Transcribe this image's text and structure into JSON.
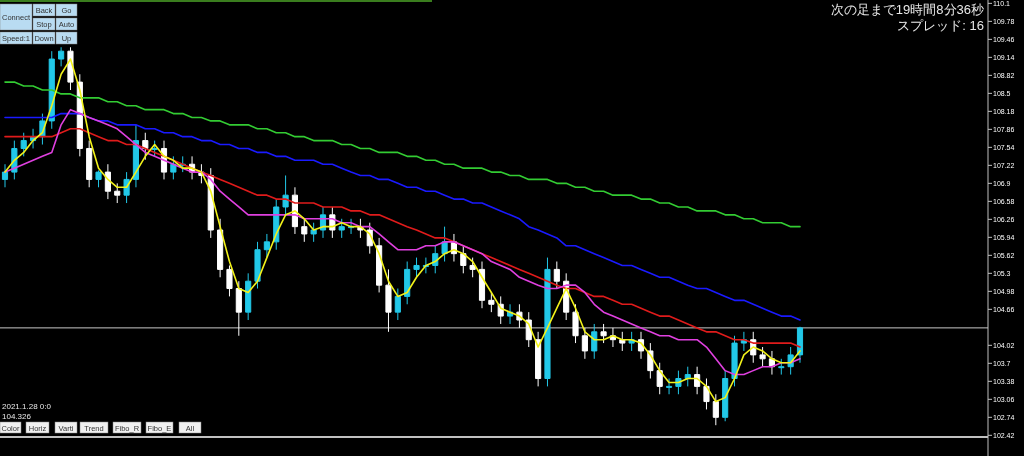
{
  "chart_data": {
    "type": "candlestick",
    "categories": [
      null,
      null,
      null,
      null,
      null,
      null,
      null,
      null,
      null,
      null,
      null,
      null,
      null,
      null,
      null,
      null,
      null,
      null,
      null,
      null,
      null,
      null,
      null,
      null,
      null,
      null,
      null,
      null,
      null,
      null,
      null,
      null,
      null,
      null,
      null,
      null,
      null,
      null,
      null,
      null,
      null,
      null,
      null,
      null,
      null,
      null,
      null,
      null,
      null,
      null,
      null,
      null,
      null,
      null,
      null,
      null,
      null,
      null,
      null,
      null,
      null,
      null,
      null,
      null,
      null,
      null,
      null,
      null,
      null,
      null,
      null,
      null,
      null,
      null,
      null,
      null,
      null,
      null,
      null,
      null,
      null,
      null,
      null,
      null,
      null,
      null
    ],
    "ylim": [
      102.39,
      110.16
    ],
    "yticks": [
      102.42,
      102.74,
      103.06,
      103.38,
      103.7,
      104.02,
      104.66,
      104.98,
      105.3,
      105.62,
      105.94,
      106.26,
      106.58,
      106.9,
      107.22,
      107.54,
      107.86,
      108.18,
      108.5,
      108.82,
      109.14,
      109.46,
      109.78,
      110.1
    ],
    "ohlc": [
      [
        106.97,
        107.24,
        106.83,
        107.1
      ],
      [
        107.1,
        107.66,
        106.97,
        107.52
      ],
      [
        107.52,
        107.8,
        107.38,
        107.66
      ],
      [
        107.66,
        107.87,
        107.52,
        107.73
      ],
      [
        107.73,
        108.14,
        107.59,
        108.01
      ],
      [
        108.01,
        109.25,
        107.87,
        109.11
      ],
      [
        109.11,
        109.32,
        108.98,
        109.25
      ],
      [
        109.25,
        109.32,
        108.56,
        108.7
      ],
      [
        108.7,
        108.84,
        107.38,
        107.52
      ],
      [
        107.52,
        107.66,
        106.83,
        106.97
      ],
      [
        106.97,
        107.13,
        106.83,
        107.1
      ],
      [
        107.1,
        107.24,
        106.62,
        106.76
      ],
      [
        106.76,
        106.9,
        106.55,
        106.69
      ],
      [
        106.69,
        107.1,
        106.55,
        106.97
      ],
      [
        106.97,
        107.94,
        106.83,
        107.66
      ],
      [
        107.66,
        107.8,
        107.32,
        107.52
      ],
      [
        107.52,
        107.66,
        107.38,
        107.52
      ],
      [
        107.52,
        107.66,
        106.97,
        107.1
      ],
      [
        107.1,
        107.38,
        106.97,
        107.24
      ],
      [
        107.24,
        107.38,
        107.1,
        107.24
      ],
      [
        107.24,
        107.38,
        106.97,
        107.1
      ],
      [
        107.1,
        107.24,
        106.9,
        107.04
      ],
      [
        107.04,
        107.17,
        105.93,
        106.07
      ],
      [
        106.07,
        106.27,
        105.23,
        105.37
      ],
      [
        105.37,
        105.44,
        104.89,
        105.03
      ],
      [
        105.03,
        105.16,
        104.19,
        104.61
      ],
      [
        104.61,
        105.3,
        104.47,
        105.16
      ],
      [
        105.16,
        105.86,
        105.03,
        105.72
      ],
      [
        105.72,
        106,
        105.58,
        105.86
      ],
      [
        105.86,
        106.62,
        105.72,
        106.48
      ],
      [
        106.48,
        107.04,
        106.34,
        106.69
      ],
      [
        106.69,
        106.83,
        106,
        106.13
      ],
      [
        106.13,
        106.27,
        105.86,
        106
      ],
      [
        106,
        106.2,
        105.86,
        106.07
      ],
      [
        106.07,
        106.48,
        105.93,
        106.34
      ],
      [
        106.34,
        106.48,
        105.93,
        106.07
      ],
      [
        106.07,
        106.27,
        105.93,
        106.13
      ],
      [
        106.13,
        106.27,
        106,
        106.13
      ],
      [
        106.13,
        106.27,
        105.93,
        106.07
      ],
      [
        106.07,
        106.2,
        105.65,
        105.79
      ],
      [
        105.79,
        105.93,
        104.96,
        105.09
      ],
      [
        105.09,
        105.37,
        104.26,
        104.61
      ],
      [
        104.61,
        105.03,
        104.47,
        104.89
      ],
      [
        104.89,
        105.51,
        104.75,
        105.37
      ],
      [
        105.37,
        105.58,
        105.23,
        105.44
      ],
      [
        105.44,
        105.58,
        105.3,
        105.44
      ],
      [
        105.44,
        105.79,
        105.3,
        105.65
      ],
      [
        105.65,
        106.13,
        105.51,
        105.86
      ],
      [
        105.86,
        106,
        105.51,
        105.65
      ],
      [
        105.65,
        105.79,
        105.3,
        105.44
      ],
      [
        105.44,
        105.58,
        105.23,
        105.37
      ],
      [
        105.37,
        105.51,
        104.68,
        104.82
      ],
      [
        104.82,
        104.96,
        104.61,
        104.75
      ],
      [
        104.75,
        104.89,
        104.4,
        104.54
      ],
      [
        104.54,
        104.75,
        104.4,
        104.61
      ],
      [
        104.61,
        104.75,
        104.33,
        104.47
      ],
      [
        104.47,
        104.61,
        103.99,
        104.12
      ],
      [
        104.12,
        104.26,
        103.29,
        103.43
      ],
      [
        103.43,
        105.58,
        103.29,
        105.37
      ],
      [
        105.37,
        105.51,
        105.03,
        105.16
      ],
      [
        105.16,
        105.3,
        104.47,
        104.61
      ],
      [
        104.61,
        104.75,
        104.06,
        104.19
      ],
      [
        104.19,
        104.33,
        103.78,
        103.92
      ],
      [
        103.92,
        104.4,
        103.78,
        104.26
      ],
      [
        104.26,
        104.4,
        104.06,
        104.19
      ],
      [
        104.19,
        104.33,
        103.99,
        104.12
      ],
      [
        104.12,
        104.26,
        103.92,
        104.06
      ],
      [
        104.06,
        104.26,
        103.92,
        104.12
      ],
      [
        104.12,
        104.26,
        103.78,
        103.92
      ],
      [
        103.92,
        104.06,
        103.43,
        103.57
      ],
      [
        103.57,
        103.71,
        103.15,
        103.29
      ],
      [
        103.29,
        103.43,
        103.15,
        103.29
      ],
      [
        103.29,
        103.57,
        103.15,
        103.43
      ],
      [
        103.43,
        103.64,
        103.29,
        103.5
      ],
      [
        103.5,
        103.64,
        103.15,
        103.29
      ],
      [
        103.29,
        103.43,
        102.88,
        103.02
      ],
      [
        103.02,
        103.15,
        102.6,
        102.74
      ],
      [
        102.74,
        103.57,
        102.67,
        103.43
      ],
      [
        103.43,
        104.19,
        103.29,
        104.06
      ],
      [
        104.06,
        104.26,
        103.92,
        104.12
      ],
      [
        104.12,
        104.26,
        103.71,
        103.85
      ],
      [
        103.85,
        103.99,
        103.64,
        103.78
      ],
      [
        103.78,
        103.92,
        103.5,
        103.64
      ],
      [
        103.64,
        103.78,
        103.5,
        103.64
      ],
      [
        103.64,
        103.99,
        103.5,
        103.85
      ],
      [
        103.85,
        104.35,
        103.71,
        104.33
      ]
    ],
    "series": [
      {
        "type": "line",
        "color": "#33cc33",
        "values": [
          108.7,
          108.7,
          108.63,
          108.63,
          108.56,
          108.56,
          108.49,
          108.49,
          108.42,
          108.42,
          108.42,
          108.35,
          108.35,
          108.28,
          108.28,
          108.21,
          108.21,
          108.21,
          108.14,
          108.14,
          108.07,
          108.07,
          108.01,
          108.01,
          107.94,
          107.94,
          107.94,
          107.87,
          107.87,
          107.8,
          107.8,
          107.73,
          107.73,
          107.66,
          107.66,
          107.66,
          107.59,
          107.59,
          107.52,
          107.52,
          107.45,
          107.45,
          107.45,
          107.38,
          107.38,
          107.31,
          107.31,
          107.24,
          107.24,
          107.17,
          107.17,
          107.17,
          107.1,
          107.1,
          107.04,
          107.04,
          106.97,
          106.97,
          106.97,
          106.9,
          106.9,
          106.83,
          106.83,
          106.76,
          106.76,
          106.69,
          106.69,
          106.69,
          106.62,
          106.62,
          106.55,
          106.55,
          106.48,
          106.48,
          106.41,
          106.41,
          106.41,
          106.34,
          106.34,
          106.27,
          106.27,
          106.2,
          106.2,
          106.2,
          106.13,
          106.13
        ]
      },
      {
        "type": "line",
        "color": "#1a1aff",
        "values": [
          108.07,
          108.07,
          108.07,
          108.07,
          108.07,
          108.07,
          108.14,
          108.14,
          108.14,
          108.07,
          108.01,
          108.01,
          107.94,
          107.94,
          107.94,
          107.87,
          107.87,
          107.8,
          107.8,
          107.73,
          107.73,
          107.66,
          107.66,
          107.59,
          107.59,
          107.52,
          107.52,
          107.45,
          107.45,
          107.38,
          107.38,
          107.31,
          107.31,
          107.31,
          107.24,
          107.24,
          107.17,
          107.1,
          107.04,
          107.04,
          106.97,
          106.97,
          106.9,
          106.83,
          106.83,
          106.76,
          106.76,
          106.69,
          106.62,
          106.62,
          106.55,
          106.55,
          106.48,
          106.41,
          106.34,
          106.27,
          106.13,
          106.07,
          106,
          105.93,
          105.79,
          105.79,
          105.72,
          105.65,
          105.58,
          105.51,
          105.44,
          105.44,
          105.37,
          105.3,
          105.23,
          105.23,
          105.16,
          105.09,
          105.03,
          105.03,
          104.96,
          104.89,
          104.82,
          104.82,
          104.75,
          104.68,
          104.61,
          104.54,
          104.54,
          104.47
        ]
      },
      {
        "type": "line",
        "color": "#e01b1b",
        "values": [
          107.73,
          107.73,
          107.73,
          107.73,
          107.73,
          107.73,
          107.8,
          107.87,
          107.87,
          107.8,
          107.73,
          107.66,
          107.66,
          107.59,
          107.59,
          107.52,
          107.45,
          107.38,
          107.31,
          107.24,
          107.17,
          107.1,
          107.04,
          106.97,
          106.9,
          106.83,
          106.76,
          106.69,
          106.69,
          106.62,
          106.62,
          106.55,
          106.55,
          106.55,
          106.48,
          106.48,
          106.48,
          106.41,
          106.41,
          106.34,
          106.34,
          106.27,
          106.2,
          106.13,
          106.07,
          106,
          105.93,
          105.93,
          105.86,
          105.79,
          105.72,
          105.65,
          105.58,
          105.51,
          105.44,
          105.37,
          105.3,
          105.23,
          105.16,
          105.09,
          105.03,
          105.03,
          104.96,
          104.89,
          104.89,
          104.82,
          104.75,
          104.75,
          104.68,
          104.61,
          104.54,
          104.54,
          104.47,
          104.4,
          104.33,
          104.26,
          104.26,
          104.19,
          104.12,
          104.12,
          104.06,
          104.06,
          104.06,
          104.06,
          104.06,
          103.99
        ]
      },
      {
        "type": "line",
        "color": "#e040e0",
        "values": [
          107.1,
          107.17,
          107.24,
          107.31,
          107.38,
          107.45,
          107.94,
          108.21,
          108.14,
          108.07,
          108.01,
          107.94,
          107.87,
          107.73,
          107.59,
          107.45,
          107.38,
          107.31,
          107.24,
          107.17,
          107.1,
          107.1,
          106.97,
          106.76,
          106.62,
          106.48,
          106.34,
          106.34,
          106.34,
          106.34,
          106.34,
          106.34,
          106.27,
          106.27,
          106.27,
          106.27,
          106.2,
          106.2,
          106.13,
          106.13,
          106,
          105.86,
          105.72,
          105.72,
          105.72,
          105.79,
          105.79,
          105.86,
          105.86,
          105.79,
          105.72,
          105.65,
          105.51,
          105.44,
          105.37,
          105.23,
          105.16,
          105.09,
          105.03,
          105.03,
          105.09,
          105.09,
          104.96,
          104.75,
          104.61,
          104.54,
          104.47,
          104.4,
          104.33,
          104.26,
          104.19,
          104.19,
          104.12,
          104.12,
          104.12,
          103.99,
          103.78,
          103.57,
          103.5,
          103.5,
          103.57,
          103.64,
          103.64,
          103.71,
          103.71,
          103.78
        ]
      },
      {
        "type": "line",
        "color": "#f2f21a",
        "values": [
          107.1,
          107.31,
          107.45,
          107.66,
          107.8,
          108.28,
          108.84,
          109.11,
          108.56,
          107.73,
          107.17,
          106.97,
          106.83,
          106.83,
          107.1,
          107.38,
          107.59,
          107.38,
          107.31,
          107.17,
          107.17,
          107.1,
          106.76,
          106.13,
          105.51,
          105.03,
          104.96,
          105.16,
          105.58,
          106,
          106.34,
          106.41,
          106.27,
          106.07,
          106.13,
          106.13,
          106.2,
          106.13,
          106.13,
          106,
          105.65,
          105.16,
          104.89,
          104.96,
          105.23,
          105.44,
          105.51,
          105.65,
          105.72,
          105.65,
          105.51,
          105.23,
          104.96,
          104.68,
          104.61,
          104.54,
          104.4,
          103.99,
          104.33,
          104.68,
          105.03,
          104.68,
          104.26,
          104.12,
          104.12,
          104.19,
          104.12,
          104.12,
          104.06,
          103.85,
          103.57,
          103.36,
          103.36,
          103.43,
          103.43,
          103.29,
          103.02,
          103.09,
          103.43,
          103.85,
          103.99,
          103.92,
          103.78,
          103.71,
          103.71,
          103.92
        ]
      }
    ],
    "ref_lines": [
      {
        "axis": "y",
        "value": 104.33,
        "color": "#c8c8c8"
      }
    ],
    "annotations": [
      "次の足まで19時間8分36秒",
      "スプレッド: 16",
      "2021.1.28 0:0",
      "104.326",
      "Connect",
      "Back",
      "Go",
      "Stop",
      "Auto",
      "Speed:1",
      "Down",
      "Up",
      "Color",
      "Horiz",
      "Varti",
      "Trend",
      "Fibo_R",
      "Fibo_E",
      "All"
    ]
  }
}
